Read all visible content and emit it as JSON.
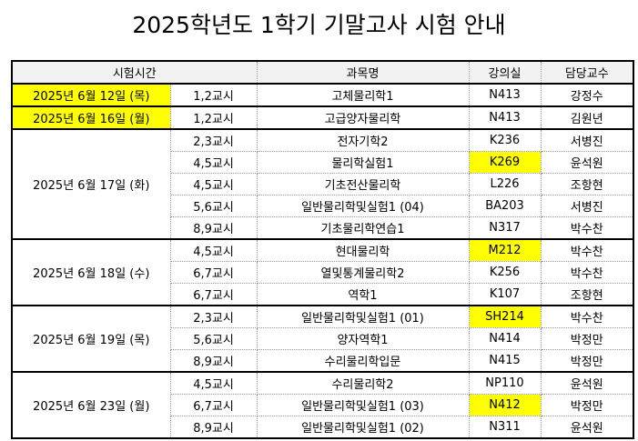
{
  "title": "2025학년도 1학기 기말고사 시험 안내",
  "headers": {
    "time": "시험시간",
    "subject": "과목명",
    "room": "강의실",
    "professor": "담당교수"
  },
  "groups": [
    {
      "date": "2025년 6월 12일 (목)",
      "date_highlight": true,
      "rows": [
        {
          "period": "1,2교시",
          "subject": "고체물리학1",
          "room": "N413",
          "room_highlight": false,
          "professor": "강정수"
        }
      ]
    },
    {
      "date": "2025년 6월 16일 (월)",
      "date_highlight": true,
      "rows": [
        {
          "period": "1,2교시",
          "subject": "고급양자물리학",
          "room": "N413",
          "room_highlight": false,
          "professor": "김원년"
        }
      ]
    },
    {
      "date": "2025년 6월 17일 (화)",
      "date_highlight": false,
      "rows": [
        {
          "period": "2,3교시",
          "subject": "전자기학2",
          "room": "K236",
          "room_highlight": false,
          "professor": "서병진"
        },
        {
          "period": "4,5교시",
          "subject": "물리학실험1",
          "room": "K269",
          "room_highlight": true,
          "professor": "윤석원"
        },
        {
          "period": "4,5교시",
          "subject": "기초전산물리학",
          "room": "L226",
          "room_highlight": false,
          "professor": "조항현"
        },
        {
          "period": "5,6교시",
          "subject": "일반물리학및실험1 (04)",
          "room": "BA203",
          "room_highlight": false,
          "professor": "서병진"
        },
        {
          "period": "8,9교시",
          "subject": "기초물리학연습1",
          "room": "N317",
          "room_highlight": false,
          "professor": "박수찬"
        }
      ]
    },
    {
      "date": "2025년 6월 18일 (수)",
      "date_highlight": false,
      "rows": [
        {
          "period": "4,5교시",
          "subject": "현대물리학",
          "room": "M212",
          "room_highlight": true,
          "professor": "박수찬"
        },
        {
          "period": "6,7교시",
          "subject": "열및통계물리학2",
          "room": "K256",
          "room_highlight": false,
          "professor": "박수찬"
        },
        {
          "period": "6,7교시",
          "subject": "역학1",
          "room": "K107",
          "room_highlight": false,
          "professor": "조항현"
        }
      ]
    },
    {
      "date": "2025년 6월 19일 (목)",
      "date_highlight": false,
      "rows": [
        {
          "period": "2,3교시",
          "subject": "일반물리학및실험1 (01)",
          "room": "SH214",
          "room_highlight": true,
          "professor": "박수찬"
        },
        {
          "period": "5,6교시",
          "subject": "양자역학1",
          "room": "N414",
          "room_highlight": false,
          "professor": "박정만"
        },
        {
          "period": "8,9교시",
          "subject": "수리물리학입문",
          "room": "N415",
          "room_highlight": false,
          "professor": "박정만"
        }
      ]
    },
    {
      "date": "2025년 6월 23일 (월)",
      "date_highlight": false,
      "rows": [
        {
          "period": "4,5교시",
          "subject": "수리물리학2",
          "room": "NP110",
          "room_highlight": false,
          "professor": "윤석원"
        },
        {
          "period": "6,7교시",
          "subject": "일반물리학및실험1 (03)",
          "room": "N412",
          "room_highlight": true,
          "professor": "박정만"
        },
        {
          "period": "8,9교시",
          "subject": "일반물리학및실험1 (02)",
          "room": "N311",
          "room_highlight": false,
          "professor": "윤석원"
        }
      ]
    }
  ],
  "colors": {
    "highlight": "#ffff00",
    "header_bg": "#f2f2f2",
    "border": "#000000"
  }
}
